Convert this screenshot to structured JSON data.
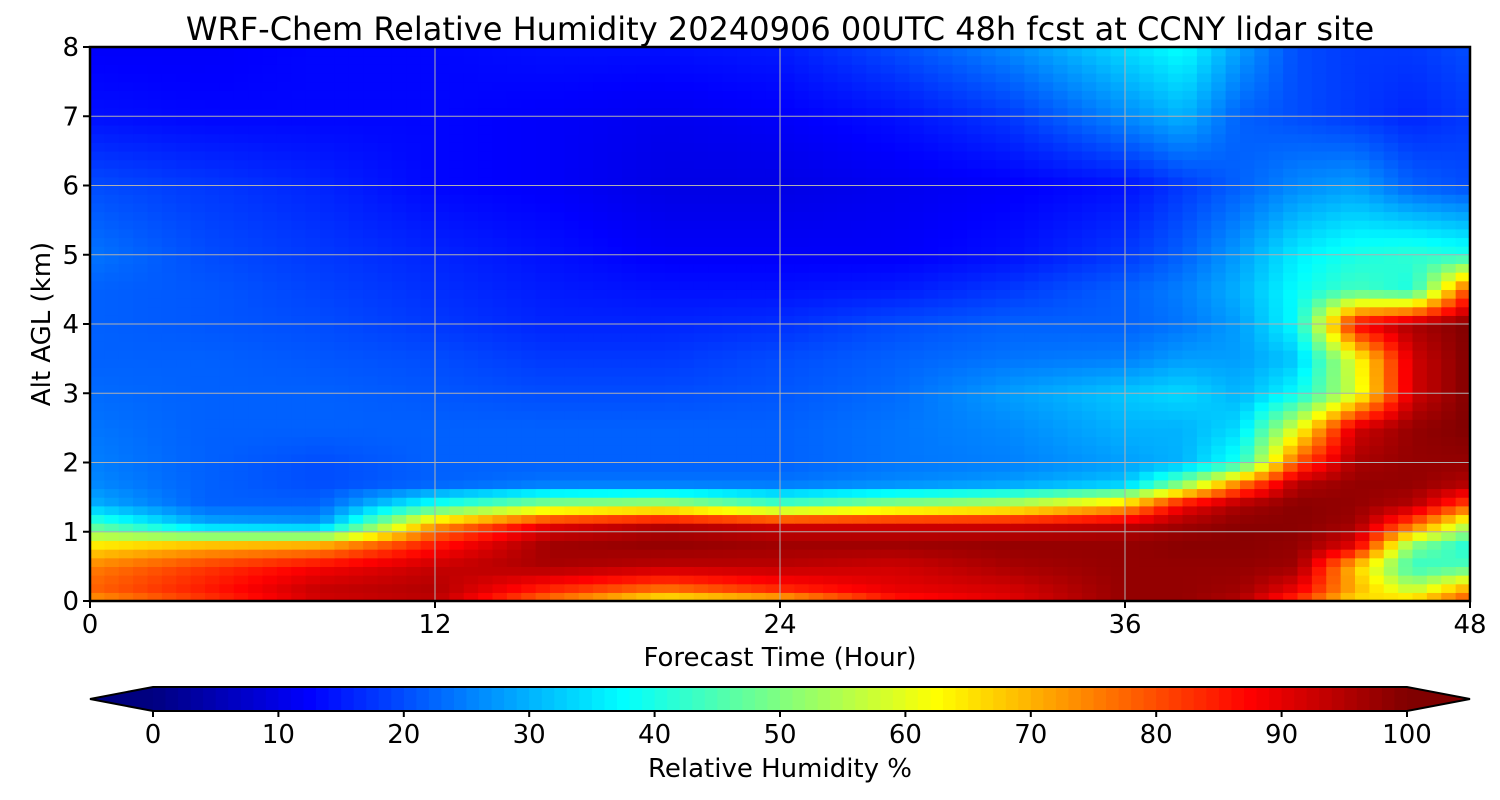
{
  "chart_data": {
    "type": "heatmap",
    "title": "WRF-Chem Relative Humidity 20240906 00UTC 48h fcst at CCNY lidar site",
    "xlabel": "Forecast Time (Hour)",
    "ylabel": "Alt AGL (km)",
    "xlim": [
      0,
      48
    ],
    "ylim": [
      0,
      8
    ],
    "x_ticks": [
      "0",
      "12",
      "24",
      "36",
      "48"
    ],
    "y_ticks": [
      "0",
      "1",
      "2",
      "3",
      "4",
      "5",
      "6",
      "7",
      "8"
    ],
    "grid": true,
    "colorbar": {
      "label": "Relative Humidity %",
      "range": [
        0,
        100
      ],
      "colormap": "jet",
      "extend": "both",
      "ticks": [
        "0",
        "10",
        "20",
        "30",
        "40",
        "50",
        "60",
        "70",
        "80",
        "90",
        "100"
      ]
    },
    "x": [
      0,
      4,
      8,
      12,
      16,
      20,
      24,
      28,
      32,
      36,
      38,
      40,
      42,
      44,
      46,
      48
    ],
    "y": [
      0,
      0.2,
      0.5,
      0.8,
      1.1,
      1.4,
      1.7,
      2.0,
      2.5,
      3.0,
      3.5,
      4.0,
      4.5,
      5.0,
      6.0,
      7.0,
      8.0
    ],
    "z": [
      [
        72,
        82,
        92,
        94,
        75,
        62,
        68,
        85,
        90,
        98,
        98,
        95,
        82,
        65,
        68,
        82
      ],
      [
        78,
        85,
        93,
        95,
        85,
        78,
        85,
        90,
        92,
        98,
        98,
        97,
        90,
        70,
        55,
        70
      ],
      [
        75,
        82,
        88,
        93,
        96,
        94,
        94,
        92,
        96,
        98,
        98,
        98,
        97,
        68,
        42,
        45
      ],
      [
        65,
        70,
        72,
        86,
        97,
        98,
        97,
        97,
        98,
        98,
        99,
        99,
        98,
        90,
        50,
        40
      ],
      [
        45,
        30,
        28,
        72,
        90,
        95,
        92,
        92,
        92,
        94,
        97,
        99,
        99,
        97,
        78,
        55
      ],
      [
        30,
        22,
        22,
        40,
        52,
        55,
        45,
        52,
        56,
        68,
        88,
        96,
        99,
        98,
        95,
        80
      ],
      [
        26,
        22,
        20,
        22,
        24,
        24,
        24,
        26,
        28,
        32,
        50,
        75,
        95,
        98,
        98,
        95
      ],
      [
        25,
        22,
        20,
        22,
        22,
        22,
        22,
        24,
        25,
        28,
        30,
        40,
        80,
        96,
        98,
        98
      ],
      [
        24,
        22,
        22,
        22,
        22,
        22,
        22,
        24,
        26,
        30,
        30,
        34,
        60,
        92,
        98,
        100
      ],
      [
        23,
        22,
        22,
        21,
        20,
        20,
        21,
        23,
        28,
        32,
        34,
        30,
        38,
        58,
        92,
        100
      ],
      [
        22,
        22,
        21,
        20,
        18,
        18,
        20,
        22,
        24,
        25,
        28,
        28,
        32,
        60,
        92,
        100
      ],
      [
        22,
        21,
        20,
        18,
        16,
        16,
        17,
        20,
        22,
        22,
        24,
        28,
        38,
        88,
        96,
        100
      ],
      [
        22,
        21,
        19,
        17,
        15,
        14,
        14,
        15,
        18,
        22,
        25,
        30,
        38,
        44,
        40,
        82
      ],
      [
        24,
        20,
        18,
        16,
        14,
        12,
        12,
        12,
        14,
        18,
        22,
        28,
        36,
        40,
        42,
        40
      ],
      [
        20,
        18,
        16,
        13,
        12,
        10,
        10,
        11,
        12,
        14,
        18,
        22,
        26,
        28,
        22,
        20
      ],
      [
        14,
        13,
        13,
        13,
        12,
        11,
        12,
        14,
        18,
        26,
        30,
        22,
        20,
        18,
        16,
        18
      ],
      [
        12,
        12,
        13,
        13,
        14,
        14,
        15,
        20,
        26,
        34,
        38,
        28,
        20,
        18,
        18,
        20
      ]
    ]
  }
}
